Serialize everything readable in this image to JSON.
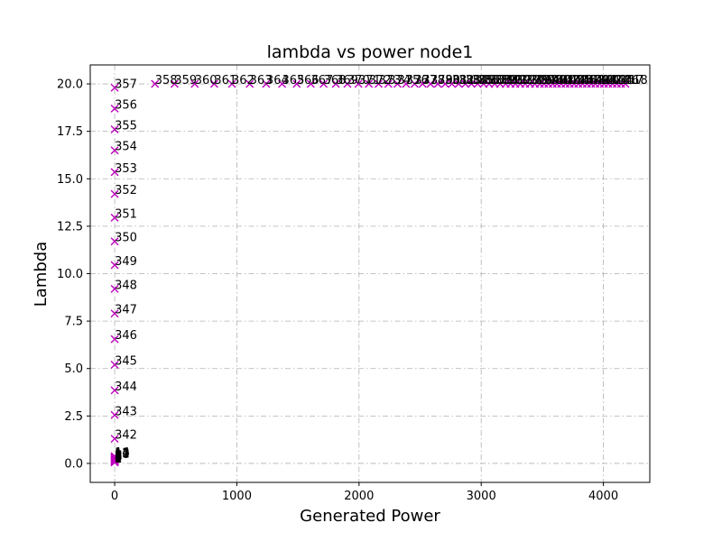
{
  "chart_data": {
    "type": "scatter",
    "title": "lambda vs power node1",
    "xlabel": "Generated Power",
    "ylabel": "Lambda",
    "xlim": [
      -200,
      4380
    ],
    "ylim": [
      -1.0,
      21.0
    ],
    "xticks": [
      0,
      1000,
      2000,
      3000,
      4000
    ],
    "yticks": [
      0.0,
      2.5,
      5.0,
      7.5,
      10.0,
      12.5,
      15.0,
      17.5,
      20.0
    ],
    "ytick_labels": [
      "0.0",
      "2.5",
      "5.0",
      "7.5",
      "10.0",
      "12.5",
      "15.0",
      "17.5",
      "20.0"
    ],
    "grid": true,
    "marker": "x",
    "marker_color": "#bf00bf",
    "label_color": "#000000",
    "rising_branch": {
      "x": [
        0,
        0,
        0,
        0,
        0,
        0,
        0,
        0,
        0,
        0,
        0,
        0,
        0,
        0,
        0,
        0
      ],
      "y": [
        1.3,
        2.55,
        3.85,
        5.2,
        6.55,
        7.9,
        9.2,
        10.45,
        11.7,
        12.95,
        14.2,
        15.35,
        16.5,
        17.6,
        18.7,
        19.8
      ],
      "labels": [
        "342",
        "343",
        "344",
        "345",
        "346",
        "347",
        "348",
        "349",
        "350",
        "351",
        "352",
        "353",
        "354",
        "355",
        "356",
        "357"
      ]
    },
    "plateau_branch": {
      "x": [
        330,
        490,
        655,
        815,
        960,
        1105,
        1240,
        1370,
        1490,
        1605,
        1710,
        1810,
        1905,
        1995,
        2080,
        2160,
        2240,
        2315,
        2385,
        2455,
        2520,
        2585,
        2645,
        2705,
        2760,
        2815,
        2870,
        2920,
        2970,
        3020,
        3065,
        3110,
        3155,
        3200,
        3240,
        3280,
        3320,
        3360,
        3400,
        3440,
        3480,
        3515,
        3550,
        3585,
        3620,
        3655,
        3690,
        3725,
        3760,
        3795,
        3830,
        3865,
        3900,
        3935,
        3970,
        4005,
        4040,
        4075,
        4110,
        4145,
        4180
      ],
      "y": [
        20.0,
        20.0,
        20.0,
        20.0,
        20.0,
        20.0,
        20.0,
        20.0,
        20.0,
        20.0,
        20.0,
        20.0,
        20.0,
        20.0,
        20.0,
        20.0,
        20.0,
        20.0,
        20.0,
        20.0,
        20.0,
        20.0,
        20.0,
        20.0,
        20.0,
        20.0,
        20.0,
        20.0,
        20.0,
        20.0,
        20.0,
        20.0,
        20.0,
        20.0,
        20.0,
        20.0,
        20.0,
        20.0,
        20.0,
        20.0,
        20.0,
        20.0,
        20.0,
        20.0,
        20.0,
        20.0,
        20.0,
        20.0,
        20.0,
        20.0,
        20.0,
        20.0,
        20.0,
        20.0,
        20.0,
        20.0,
        20.0,
        20.0,
        20.0,
        20.0,
        20.0
      ],
      "labels": [
        "358",
        "359",
        "360",
        "361",
        "362",
        "363",
        "364",
        "365",
        "366",
        "367",
        "368",
        "369",
        "370",
        "371",
        "372",
        "373",
        "374",
        "375",
        "376",
        "377",
        "378",
        "379",
        "380",
        "381",
        "382",
        "383",
        "384",
        "385",
        "386",
        "387",
        "388",
        "389",
        "390",
        "391",
        "392",
        "393",
        "394",
        "395",
        "396",
        "397",
        "398",
        "399",
        "400",
        "401",
        "402",
        "403",
        "404",
        "405",
        "406",
        "407",
        "408",
        "409",
        "410",
        "411",
        "412",
        "413",
        "414",
        "415",
        "416",
        "417",
        "418"
      ]
    },
    "cluster_near_zero": {
      "x": [
        0,
        0,
        0,
        0,
        0,
        0,
        0,
        0,
        0,
        0,
        0,
        0,
        0,
        0
      ],
      "y": [
        0.05,
        0.08,
        0.1,
        0.12,
        0.15,
        0.18,
        0.2,
        0.22,
        0.25,
        0.28,
        0.3,
        0.32,
        0.35,
        0.38
      ],
      "labels": [
        "1",
        "2",
        "3",
        "4",
        "5",
        "6",
        "7",
        "8",
        "9",
        "10",
        "11",
        "12",
        "13",
        "14"
      ]
    }
  }
}
